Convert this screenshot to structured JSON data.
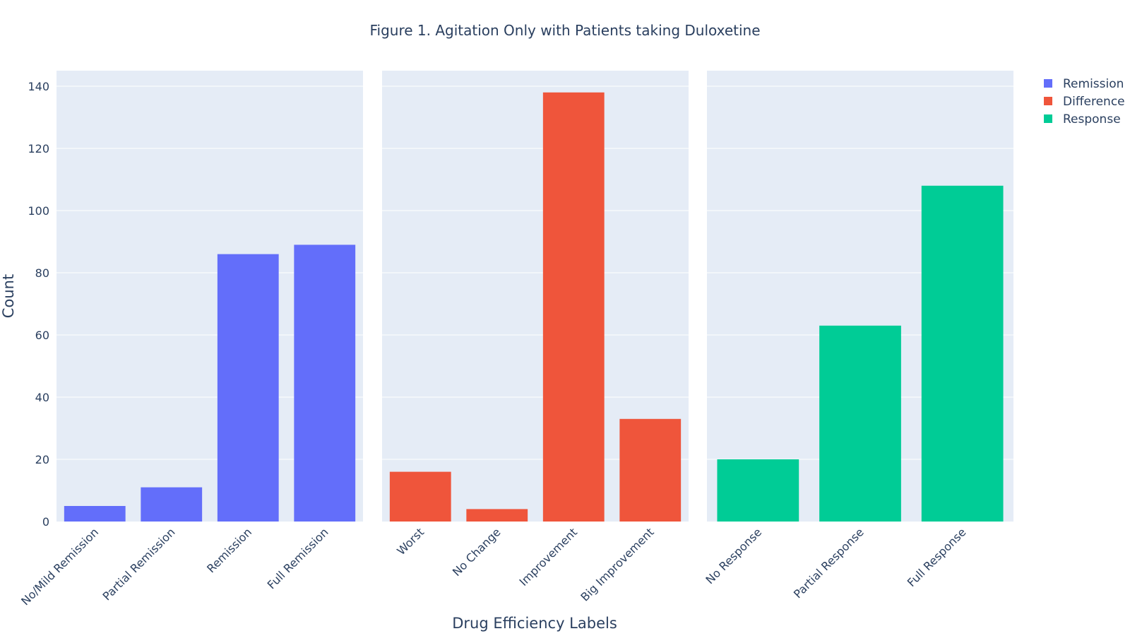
{
  "chart_data": {
    "type": "bar",
    "title": "Figure 1. Agitation Only with Patients taking Duloxetine",
    "xlabel": "Drug Efficiency Labels",
    "ylabel": "Count",
    "ylim": [
      0,
      145
    ],
    "yticks": [
      0,
      20,
      40,
      60,
      80,
      100,
      120,
      140
    ],
    "grid": true,
    "legend_position": "top-right",
    "panels": [
      {
        "series": "Remission",
        "color": "#636efa",
        "categories": [
          "No/Mild Remission",
          "Partial Remission",
          "Remission",
          "Full Remission"
        ],
        "values": [
          5,
          11,
          86,
          89
        ]
      },
      {
        "series": "Difference",
        "color": "#ef553b",
        "categories": [
          "Worst",
          "No Change",
          "Improvement",
          "Big Improvement"
        ],
        "values": [
          16,
          4,
          138,
          33
        ]
      },
      {
        "series": "Response",
        "color": "#00cc96",
        "categories": [
          "No Response",
          "Partial Response",
          "Full Response"
        ],
        "values": [
          20,
          63,
          108
        ]
      }
    ],
    "legend": [
      {
        "name": "Remission",
        "color": "#636efa"
      },
      {
        "name": "Difference",
        "color": "#ef553b"
      },
      {
        "name": "Response",
        "color": "#00cc96"
      }
    ],
    "plot_bg": "#e5ecf6",
    "grid_color": "#ffffff",
    "text_color": "#2a3f5f"
  }
}
